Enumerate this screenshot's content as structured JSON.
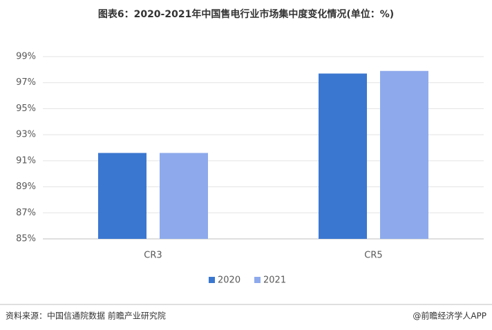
{
  "chart_data": {
    "type": "bar",
    "title": "图表6：2020-2021年中国售电行业市场集中度变化情况(单位：%)",
    "categories": [
      "CR3",
      "CR5"
    ],
    "series": [
      {
        "name": "2020",
        "color": "#3a77d0",
        "values": [
          91.6,
          97.7
        ]
      },
      {
        "name": "2021",
        "color": "#8eaaec",
        "values": [
          91.6,
          97.9
        ]
      }
    ],
    "ylim": [
      85,
      99
    ],
    "yticks": [
      {
        "value": 85,
        "label": "85%"
      },
      {
        "value": 87,
        "label": "87%"
      },
      {
        "value": 89,
        "label": "89%"
      },
      {
        "value": 91,
        "label": "91%"
      },
      {
        "value": 93,
        "label": "93%"
      },
      {
        "value": 95,
        "label": "95%"
      },
      {
        "value": 97,
        "label": "97%"
      },
      {
        "value": 99,
        "label": "99%"
      }
    ],
    "grid": true,
    "legend": "bottom",
    "source": "资料来源：中国信通院数据 前瞻产业研究院",
    "credit": "@前瞻经济学人APP"
  }
}
